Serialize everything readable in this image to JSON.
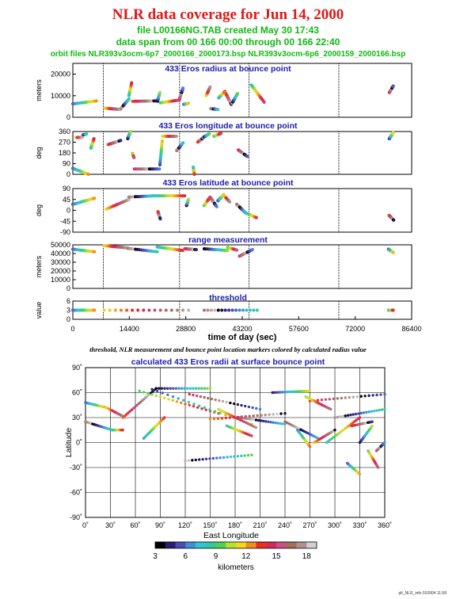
{
  "header": {
    "title": "NLR data coverage for Jun 14, 2000",
    "file_line": "file L00166NG.TAB created May 30 17:43",
    "span_line": "data span from 00 166 00:00 through 00 166 22:40",
    "orbit_line": "orbit files NLR393v3ocm-6p7_2000166_2000173.bsp NLR393v3ocm-6p6_2000159_2000166.bsp"
  },
  "caption": "threshold, NLR measurement and bounce point location markers colored by calculated radius value",
  "footer": "plt_NLR_info 010904 11:58",
  "colors": {
    "title": "#e01818",
    "subtitle": "#12b812",
    "panel_title": "#1c1cb0",
    "frame": "#000000",
    "day_lines": "#000000"
  },
  "chart_data": [
    {
      "type": "scatter",
      "title": "433 Eros radius at bounce point",
      "ylabel": "meters",
      "yticks": [
        "20000",
        "10000",
        "0"
      ],
      "ytick_values": [
        20000,
        10000,
        0
      ],
      "ylim": [
        0,
        25000
      ],
      "xlim": [
        0,
        86400
      ],
      "series": [
        {
          "x": [
            0,
            6000
          ],
          "y": [
            6200,
            7600
          ]
        },
        {
          "x": [
            8200,
            12200
          ],
          "y": [
            4200,
            3600
          ]
        },
        {
          "x": [
            12300,
            14300
          ],
          "y": [
            4200,
            8500
          ]
        },
        {
          "x": [
            14300,
            15000
          ],
          "y": [
            10000,
            16000
          ]
        },
        {
          "x": [
            15200,
            21500
          ],
          "y": [
            7400,
            7600
          ]
        },
        {
          "x": [
            21600,
            22200
          ],
          "y": [
            7500,
            11500
          ]
        },
        {
          "x": [
            22300,
            27200
          ],
          "y": [
            6700,
            8000
          ]
        },
        {
          "x": [
            27200,
            28100
          ],
          "y": [
            8500,
            13500
          ]
        },
        {
          "x": [
            28300,
            29500
          ],
          "y": [
            6000,
            6500
          ]
        },
        {
          "x": [
            34000,
            35000
          ],
          "y": [
            10000,
            14000
          ]
        },
        {
          "x": [
            35200,
            37000
          ],
          "y": [
            4000,
            3600
          ]
        },
        {
          "x": [
            37200,
            38800
          ],
          "y": [
            9000,
            12000
          ]
        },
        {
          "x": [
            38900,
            40400
          ],
          "y": [
            11500,
            6000
          ]
        },
        {
          "x": [
            40600,
            42000
          ],
          "y": [
            6500,
            11000
          ]
        },
        {
          "x": [
            45500,
            48800
          ],
          "y": [
            15000,
            7000
          ]
        },
        {
          "x": [
            80700,
            81700
          ],
          "y": [
            11500,
            14500
          ]
        }
      ]
    },
    {
      "type": "scatter",
      "title": "433 Eros longitude at bounce point",
      "ylabel": "deg",
      "yticks": [
        "360",
        "270",
        "180",
        "90",
        "0"
      ],
      "ytick_values": [
        360,
        270,
        180,
        90,
        0
      ],
      "ylim": [
        0,
        360
      ],
      "xlim": [
        0,
        86400
      ],
      "series": [
        {
          "x": [
            0,
            4000
          ],
          "y": [
            50,
            0
          ]
        },
        {
          "x": [
            800,
            2400
          ],
          "y": [
            310,
            310
          ]
        },
        {
          "x": [
            2500,
            3500
          ],
          "y": [
            330,
            340
          ]
        },
        {
          "x": [
            4600,
            5400
          ],
          "y": [
            220,
            300
          ]
        },
        {
          "x": [
            9000,
            12200
          ],
          "y": [
            250,
            285
          ]
        },
        {
          "x": [
            14000,
            14700
          ],
          "y": [
            300,
            360
          ]
        },
        {
          "x": [
            15200,
            15600
          ],
          "y": [
            175,
            140
          ]
        },
        {
          "x": [
            15700,
            22100
          ],
          "y": [
            45,
            45
          ]
        },
        {
          "x": [
            22200,
            22800
          ],
          "y": [
            80,
            280
          ]
        },
        {
          "x": [
            22900,
            26400
          ],
          "y": [
            320,
            320
          ]
        },
        {
          "x": [
            26500,
            28100
          ],
          "y": [
            200,
            265
          ]
        },
        {
          "x": [
            30700,
            31000
          ],
          "y": [
            60,
            0
          ]
        },
        {
          "x": [
            31800,
            33000
          ],
          "y": [
            270,
            300
          ]
        },
        {
          "x": [
            33200,
            34800
          ],
          "y": [
            310,
            340
          ]
        },
        {
          "x": [
            36000,
            37800
          ],
          "y": [
            320,
            345
          ]
        },
        {
          "x": [
            42200,
            44500
          ],
          "y": [
            205,
            150
          ]
        },
        {
          "x": [
            80700,
            81700
          ],
          "y": [
            300,
            350
          ]
        }
      ]
    },
    {
      "type": "scatter",
      "title": "433 Eros latitude at bounce point",
      "ylabel": "deg",
      "yticks": [
        "90",
        "45",
        "0",
        "-45",
        "-90"
      ],
      "ytick_values": [
        90,
        45,
        0,
        -45,
        -90
      ],
      "ylim": [
        -90,
        90
      ],
      "xlim": [
        0,
        86400
      ],
      "series": [
        {
          "x": [
            0,
            5500
          ],
          "y": [
            25,
            50
          ]
        },
        {
          "x": [
            8500,
            14300
          ],
          "y": [
            5,
            45
          ]
        },
        {
          "x": [
            14300,
            20500
          ],
          "y": [
            55,
            60
          ]
        },
        {
          "x": [
            20500,
            28500
          ],
          "y": [
            60,
            60
          ]
        },
        {
          "x": [
            21700,
            22300
          ],
          "y": [
            -5,
            -35
          ]
        },
        {
          "x": [
            29000,
            29500
          ],
          "y": [
            20,
            45
          ]
        },
        {
          "x": [
            33500,
            35000
          ],
          "y": [
            20,
            55
          ]
        },
        {
          "x": [
            35200,
            36700
          ],
          "y": [
            50,
            15
          ]
        },
        {
          "x": [
            37000,
            38500
          ],
          "y": [
            40,
            65
          ]
        },
        {
          "x": [
            38600,
            40000
          ],
          "y": [
            60,
            35
          ]
        },
        {
          "x": [
            41800,
            44000
          ],
          "y": [
            25,
            -10
          ]
        },
        {
          "x": [
            44000,
            46800
          ],
          "y": [
            -10,
            -30
          ]
        },
        {
          "x": [
            80600,
            81800
          ],
          "y": [
            -20,
            -40
          ]
        }
      ]
    },
    {
      "type": "scatter",
      "title": "range measurement",
      "ylabel": "meters",
      "yticks": [
        "50000",
        "40000",
        "30000",
        "20000",
        "10000",
        "0"
      ],
      "ytick_values": [
        50000,
        40000,
        30000,
        20000,
        10000,
        0
      ],
      "ylim": [
        0,
        50000
      ],
      "xlim": [
        0,
        86400
      ],
      "series": [
        {
          "x": [
            0,
            5500
          ],
          "y": [
            45000,
            42000
          ]
        },
        {
          "x": [
            8000,
            14000
          ],
          "y": [
            49000,
            46500
          ]
        },
        {
          "x": [
            14000,
            21500
          ],
          "y": [
            46000,
            42000
          ]
        },
        {
          "x": [
            21500,
            28000
          ],
          "y": [
            47500,
            43500
          ]
        },
        {
          "x": [
            28500,
            31500
          ],
          "y": [
            45500,
            44500
          ]
        },
        {
          "x": [
            33500,
            39500
          ],
          "y": [
            45500,
            43500
          ]
        },
        {
          "x": [
            39500,
            41800
          ],
          "y": [
            47000,
            44000
          ]
        },
        {
          "x": [
            42500,
            45800
          ],
          "y": [
            37000,
            44500
          ]
        },
        {
          "x": [
            80500,
            81700
          ],
          "y": [
            45000,
            41000
          ]
        }
      ]
    },
    {
      "type": "scatter",
      "title": "threshold",
      "ylabel": "value",
      "yticks": [
        "6",
        "3",
        "0"
      ],
      "ytick_values": [
        6,
        3,
        0
      ],
      "ylim": [
        0,
        6
      ],
      "xlim": [
        0,
        86400
      ],
      "xticks": [
        "0",
        "14400",
        "28800",
        "43200",
        "57600",
        "72000",
        "86400"
      ],
      "xtick_values": [
        0,
        14400,
        28800,
        43200,
        57600,
        72000,
        86400
      ],
      "xlabel": "time of day (sec)",
      "series": [
        {
          "x": [
            0,
            5500
          ],
          "y": [
            3,
            3
          ]
        },
        {
          "x": [
            8000,
            29500
          ],
          "y": [
            3,
            3
          ]
        },
        {
          "x": [
            33500,
            47000
          ],
          "y": [
            3,
            3
          ]
        },
        {
          "x": [
            80500,
            81700
          ],
          "y": [
            3,
            3
          ]
        }
      ]
    },
    {
      "type": "scatter",
      "title": "calculated 433 Eros radii at surface bounce point",
      "xlabel": "East Longitude",
      "ylabel": "Latitude",
      "xlim": [
        0,
        360
      ],
      "ylim": [
        -90,
        90
      ],
      "xticks": [
        "0˚",
        "30˚",
        "60˚",
        "90˚",
        "120˚",
        "150˚",
        "180˚",
        "210˚",
        "240˚",
        "270˚",
        "300˚",
        "330˚",
        "360˚"
      ],
      "xtick_values": [
        0,
        30,
        60,
        90,
        120,
        150,
        180,
        210,
        240,
        270,
        300,
        330,
        360
      ],
      "yticks": [
        "90˚",
        "60˚",
        "30˚",
        "0˚",
        "-30˚",
        "-60˚",
        "-90˚"
      ],
      "ytick_values": [
        90,
        60,
        30,
        0,
        -30,
        -60,
        -90
      ],
      "colorbar": {
        "label": "kilometers",
        "min": 3,
        "max": 19,
        "tick_labels": [
          "3",
          "6",
          "9",
          "12",
          "15",
          "18"
        ],
        "tick_values": [
          3,
          6,
          9,
          12,
          15,
          18
        ],
        "colors": [
          "#000000",
          "#2a1e6e",
          "#4b4bb0",
          "#3d8fd8",
          "#35c2d8",
          "#33c8a0",
          "#4ed24e",
          "#b8e030",
          "#f0d820",
          "#f08c20",
          "#e83020",
          "#d02a58",
          "#c85088",
          "#a07058",
          "#b09090",
          "#d0d0d0"
        ]
      },
      "series": [
        {
          "x": [
            0,
            25
          ],
          "y": [
            48,
            42
          ]
        },
        {
          "x": [
            25,
            48
          ],
          "y": [
            42,
            30
          ]
        },
        {
          "x": [
            0,
            32
          ],
          "y": [
            25,
            15
          ]
        },
        {
          "x": [
            32,
            45
          ],
          "y": [
            15,
            15
          ]
        },
        {
          "x": [
            45,
            85
          ],
          "y": [
            30,
            65
          ]
        },
        {
          "x": [
            85,
            150
          ],
          "y": [
            65,
            65
          ]
        },
        {
          "x": [
            65,
            160
          ],
          "y": [
            62,
            35
          ]
        },
        {
          "x": [
            125,
            210
          ],
          "y": [
            58,
            40
          ]
        },
        {
          "x": [
            80,
            200
          ],
          "y": [
            64,
            22
          ]
        },
        {
          "x": [
            160,
            205
          ],
          "y": [
            40,
            18
          ]
        },
        {
          "x": [
            185,
            240
          ],
          "y": [
            30,
            22
          ]
        },
        {
          "x": [
            70,
            95
          ],
          "y": [
            5,
            30
          ]
        },
        {
          "x": [
            150,
            240
          ],
          "y": [
            28,
            35
          ]
        },
        {
          "x": [
            120,
            200
          ],
          "y": [
            -22,
            -15
          ]
        },
        {
          "x": [
            170,
            200
          ],
          "y": [
            20,
            8
          ]
        },
        {
          "x": [
            270,
            360
          ],
          "y": [
            50,
            58
          ]
        },
        {
          "x": [
            225,
            270
          ],
          "y": [
            60,
            62
          ]
        },
        {
          "x": [
            265,
            295
          ],
          "y": [
            55,
            40
          ]
        },
        {
          "x": [
            240,
            280
          ],
          "y": [
            25,
            5
          ]
        },
        {
          "x": [
            255,
            270
          ],
          "y": [
            15,
            -5
          ]
        },
        {
          "x": [
            275,
            300
          ],
          "y": [
            0,
            15
          ]
        },
        {
          "x": [
            300,
            360
          ],
          "y": [
            30,
            40
          ]
        },
        {
          "x": [
            290,
            330
          ],
          "y": [
            0,
            30
          ]
        },
        {
          "x": [
            320,
            345
          ],
          "y": [
            20,
            25
          ]
        },
        {
          "x": [
            330,
            345
          ],
          "y": [
            0,
            20
          ]
        },
        {
          "x": [
            340,
            352
          ],
          "y": [
            -10,
            -30
          ]
        },
        {
          "x": [
            350,
            360
          ],
          "y": [
            -10,
            0
          ]
        },
        {
          "x": [
            315,
            330
          ],
          "y": [
            -25,
            -38
          ]
        }
      ]
    }
  ]
}
